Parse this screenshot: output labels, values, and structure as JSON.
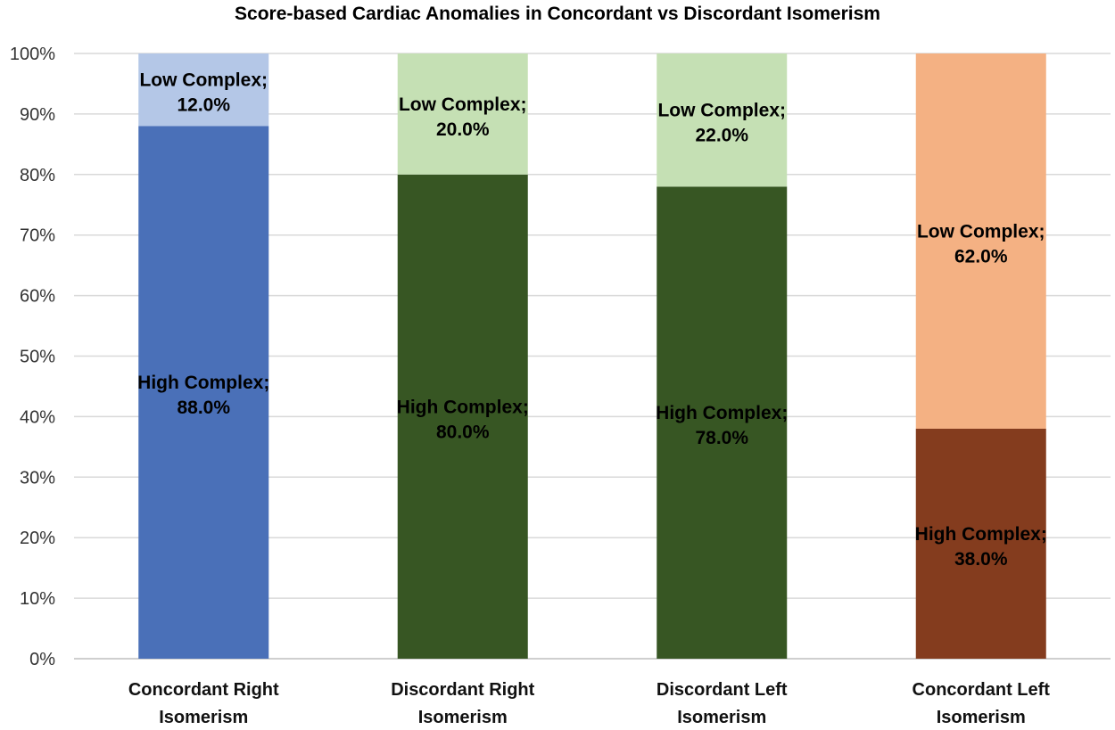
{
  "chart_data": {
    "type": "bar",
    "stacked": true,
    "percent_stacked": true,
    "title": "Score-based Cardiac Anomalies in Concordant vs Discordant Isomerism",
    "xlabel": "",
    "ylabel": "",
    "ylim": [
      0,
      100
    ],
    "y_ticks": [
      "0%",
      "10%",
      "20%",
      "30%",
      "40%",
      "50%",
      "60%",
      "70%",
      "80%",
      "90%",
      "100%"
    ],
    "grid": true,
    "legend": "none",
    "categories": [
      [
        "Concordant Right",
        "Isomerism"
      ],
      [
        "Discordant Right",
        "Isomerism"
      ],
      [
        "Discordant Left",
        "Isomerism"
      ],
      [
        "Concordant Left",
        "Isomerism"
      ]
    ],
    "series": [
      {
        "name": "High Complex",
        "values": [
          88.0,
          80.0,
          78.0,
          38.0
        ],
        "colors": [
          "#4A70B8",
          "#375623",
          "#375623",
          "#843C1E"
        ],
        "labels": [
          "High Complex;|88.0%",
          "High Complex;|80.0%",
          "High Complex;|78.0%",
          "High Complex;|38.0%"
        ]
      },
      {
        "name": "Low Complex",
        "values": [
          12.0,
          20.0,
          22.0,
          62.0
        ],
        "colors": [
          "#B4C7E7",
          "#C5E0B4",
          "#C5E0B4",
          "#F4B183"
        ],
        "labels": [
          "Low Complex;|12.0%",
          "Low Complex;|20.0%",
          "Low Complex;|22.0%",
          "Low Complex;|62.0%"
        ]
      }
    ]
  }
}
